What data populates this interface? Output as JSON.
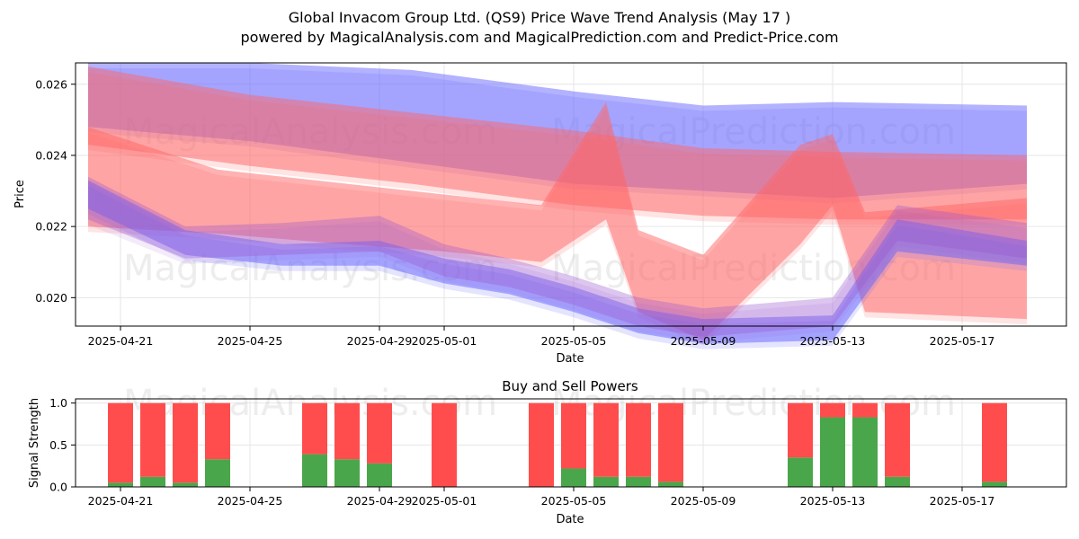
{
  "title_line1": "Global Invacom Group Ltd. (QS9) Price Wave Trend Analysis (May 17 )",
  "title_line2": "powered by MagicalAnalysis.com and MagicalPrediction.com and Predict-Price.com",
  "watermarks": [
    "MagicalAnalysis.com",
    "MagicalPrediction.com"
  ],
  "colors": {
    "blue_band": "#6666ff",
    "red_band": "#ff6666",
    "buy": "#4aa64a",
    "sell": "#ff4d4d"
  },
  "chart_data": [
    {
      "type": "area",
      "title": "",
      "xlabel": "Date",
      "ylabel": "Price",
      "x_ticks": [
        "2025-04-21",
        "2025-04-25",
        "2025-04-29",
        "2025-05-01",
        "2025-05-05",
        "2025-05-09",
        "2025-05-13",
        "2025-05-17"
      ],
      "y_ticks": [
        "0.020",
        "0.022",
        "0.024",
        "0.026"
      ],
      "ylim": [
        0.0192,
        0.0266
      ],
      "grid": true,
      "series": [
        {
          "color": "blue",
          "x": [
            "2025-04-20",
            "2025-04-25",
            "2025-04-30",
            "2025-05-05",
            "2025-05-09",
            "2025-05-13",
            "2025-05-19"
          ],
          "lower": [
            0.0248,
            0.0244,
            0.0238,
            0.0232,
            0.023,
            0.0228,
            0.0232
          ],
          "upper": [
            0.0266,
            0.0266,
            0.0264,
            0.0258,
            0.0254,
            0.0255,
            0.0254
          ]
        },
        {
          "color": "red",
          "x": [
            "2025-04-20",
            "2025-04-25",
            "2025-04-30",
            "2025-05-05",
            "2025-05-09",
            "2025-05-13",
            "2025-05-19"
          ],
          "lower": [
            0.0243,
            0.0237,
            0.0232,
            0.0226,
            0.0223,
            0.0222,
            0.0222
          ],
          "upper": [
            0.0265,
            0.0257,
            0.0252,
            0.0247,
            0.0242,
            0.0241,
            0.024
          ]
        },
        {
          "color": "red",
          "x": [
            "2025-04-20",
            "2025-04-24",
            "2025-04-28",
            "2025-05-01",
            "2025-05-04",
            "2025-05-06",
            "2025-05-07",
            "2025-05-09",
            "2025-05-12",
            "2025-05-13",
            "2025-05-14",
            "2025-05-19"
          ],
          "lower": [
            0.022,
            0.0218,
            0.0215,
            0.0213,
            0.021,
            0.0222,
            0.0196,
            0.0188,
            0.0215,
            0.0226,
            0.0196,
            0.0194
          ],
          "upper": [
            0.0248,
            0.0236,
            0.0232,
            0.0229,
            0.0226,
            0.0255,
            0.0219,
            0.0212,
            0.0243,
            0.0246,
            0.0224,
            0.0228
          ]
        },
        {
          "color": "blue",
          "x": [
            "2025-04-20",
            "2025-04-23",
            "2025-04-26",
            "2025-04-29",
            "2025-05-01",
            "2025-05-03",
            "2025-05-05",
            "2025-05-07",
            "2025-05-09",
            "2025-05-13",
            "2025-05-15",
            "2025-05-19"
          ],
          "lower": [
            0.0225,
            0.0212,
            0.0209,
            0.0209,
            0.0204,
            0.0201,
            0.0196,
            0.019,
            0.0187,
            0.0188,
            0.0213,
            0.0209
          ],
          "upper": [
            0.0233,
            0.0219,
            0.0215,
            0.0216,
            0.0211,
            0.0208,
            0.0203,
            0.0197,
            0.0194,
            0.0195,
            0.0222,
            0.0216
          ]
        },
        {
          "color": "purple",
          "x": [
            "2025-04-20",
            "2025-04-23",
            "2025-04-26",
            "2025-04-29",
            "2025-05-01",
            "2025-05-03",
            "2025-05-05",
            "2025-05-07",
            "2025-05-09",
            "2025-05-13",
            "2025-05-15",
            "2025-05-19"
          ],
          "lower": [
            0.0222,
            0.0211,
            0.0212,
            0.0213,
            0.0206,
            0.0203,
            0.0198,
            0.0192,
            0.0189,
            0.0192,
            0.0216,
            0.0211
          ],
          "upper": [
            0.0234,
            0.022,
            0.0221,
            0.0223,
            0.0215,
            0.0211,
            0.0206,
            0.02,
            0.0197,
            0.02,
            0.0226,
            0.0221
          ]
        }
      ]
    },
    {
      "type": "bar",
      "title": "Buy and Sell Powers",
      "xlabel": "Date",
      "ylabel": "Signal Strength",
      "x_ticks": [
        "2025-04-21",
        "2025-04-25",
        "2025-04-29",
        "2025-05-01",
        "2025-05-05",
        "2025-05-09",
        "2025-05-13",
        "2025-05-17"
      ],
      "y_ticks": [
        "0.0",
        "0.5",
        "1.0"
      ],
      "ylim": [
        0,
        1.05
      ],
      "grid": true,
      "categories": [
        "2025-04-21",
        "2025-04-22",
        "2025-04-23",
        "2025-04-24",
        "2025-04-27",
        "2025-04-28",
        "2025-04-29",
        "2025-05-01",
        "2025-05-04",
        "2025-05-05",
        "2025-05-06",
        "2025-05-07",
        "2025-05-08",
        "2025-05-12",
        "2025-05-13",
        "2025-05-14",
        "2025-05-15",
        "2025-05-18"
      ],
      "series": [
        {
          "name": "Buy",
          "values": [
            0.05,
            0.12,
            0.05,
            0.33,
            0.39,
            0.33,
            0.28,
            0.0,
            0.0,
            0.22,
            0.12,
            0.12,
            0.06,
            0.35,
            0.83,
            0.83,
            0.12,
            0.06
          ]
        },
        {
          "name": "Sell",
          "values": [
            0.95,
            0.88,
            0.95,
            0.67,
            0.61,
            0.67,
            0.72,
            1.0,
            1.0,
            0.78,
            0.88,
            0.88,
            0.94,
            0.65,
            0.17,
            0.17,
            0.88,
            0.94
          ]
        }
      ]
    }
  ]
}
